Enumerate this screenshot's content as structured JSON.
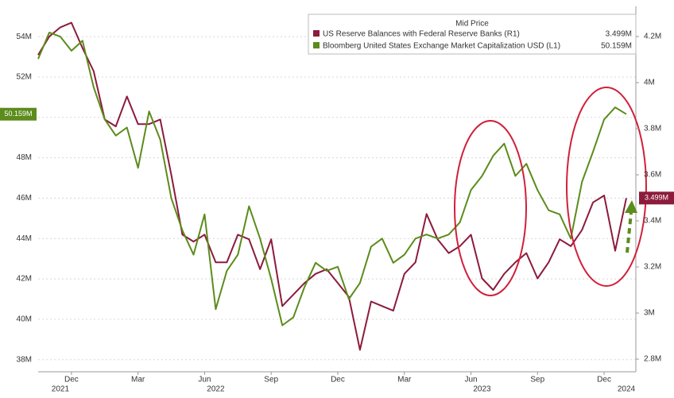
{
  "chart_data": {
    "type": "line",
    "legend_title": "Mid Price",
    "categories": [
      null,
      null,
      null,
      "Dec",
      null,
      null,
      null,
      null,
      null,
      "Mar",
      null,
      null,
      null,
      null,
      null,
      "Jun",
      null,
      null,
      null,
      null,
      null,
      "Sep",
      null,
      null,
      null,
      null,
      null,
      "Dec",
      null,
      null,
      null,
      null,
      null,
      "Mar",
      null,
      null,
      null,
      null,
      null,
      "Jun",
      null,
      null,
      null,
      null,
      null,
      "Sep",
      null,
      null,
      null,
      null,
      null,
      "Dec",
      null,
      null
    ],
    "year_categories": [
      null,
      null,
      "2021",
      null,
      null,
      null,
      null,
      null,
      null,
      null,
      null,
      null,
      null,
      null,
      null,
      null,
      "2022",
      null,
      null,
      null,
      null,
      null,
      null,
      null,
      null,
      null,
      null,
      null,
      null,
      null,
      null,
      null,
      null,
      null,
      null,
      null,
      null,
      null,
      null,
      null,
      "2023",
      null,
      null,
      null,
      null,
      null,
      null,
      null,
      null,
      null,
      null,
      null,
      null,
      "2024"
    ],
    "series": [
      {
        "name": "US Reserve Balances with Federal Reserve Banks  (R1)",
        "color": "#8c1b3c",
        "axis": "y2",
        "last_label": "3.499M",
        "values": [
          4.12,
          4.2,
          4.24,
          4.26,
          4.15,
          4.05,
          3.84,
          3.81,
          3.94,
          3.82,
          3.82,
          3.84,
          3.6,
          3.34,
          3.31,
          3.34,
          3.22,
          3.22,
          3.34,
          3.32,
          3.19,
          3.32,
          3.03,
          3.08,
          3.13,
          3.17,
          3.19,
          3.13,
          3.07,
          2.84,
          3.05,
          3.03,
          3.01,
          3.17,
          3.22,
          3.43,
          3.32,
          3.26,
          3.29,
          3.34,
          3.15,
          3.1,
          3.17,
          3.22,
          3.26,
          3.15,
          3.22,
          3.32,
          3.29,
          3.36,
          3.48,
          3.51,
          3.27,
          3.499
        ]
      },
      {
        "name": "Bloomberg United States Exchange Market Capitalization USD  (L1)",
        "color": "#5b8c1c",
        "last_label": "50.159M",
        "values": [
          52.9,
          54.2,
          54.0,
          53.3,
          53.8,
          51.5,
          49.9,
          49.1,
          49.5,
          47.5,
          50.3,
          48.9,
          46.0,
          44.4,
          43.2,
          45.2,
          40.5,
          42.4,
          43.2,
          45.6,
          44.0,
          42.0,
          39.7,
          40.1,
          41.6,
          42.8,
          42.4,
          42.6,
          41.0,
          41.8,
          43.6,
          44.0,
          42.8,
          43.2,
          44.0,
          44.2,
          44.0,
          44.2,
          44.8,
          46.4,
          47.1,
          48.1,
          48.7,
          47.1,
          47.7,
          46.4,
          45.4,
          45.2,
          44.0,
          46.8,
          48.3,
          49.9,
          50.5,
          50.159
        ]
      }
    ],
    "ylim": [
      37.4,
      55.5
    ],
    "yticks": [
      {
        "value": 38,
        "label": "38M"
      },
      {
        "value": 40,
        "label": "40M"
      },
      {
        "value": 42,
        "label": "42M"
      },
      {
        "value": 44,
        "label": "44M"
      },
      {
        "value": 46,
        "label": "46M"
      },
      {
        "value": 48,
        "label": "48M"
      },
      {
        "value": 50,
        "label": "50M"
      },
      {
        "value": 52,
        "label": "52M"
      },
      {
        "value": 54,
        "label": "54M"
      }
    ],
    "y2lim": [
      2.745,
      4.331
    ],
    "y2ticks": [
      {
        "value": 2.8,
        "label": "2.8M"
      },
      {
        "value": 3,
        "label": "3M"
      },
      {
        "value": 3.2,
        "label": "3.2M"
      },
      {
        "value": 3.4,
        "label": "3.4M"
      },
      {
        "value": 3.6,
        "label": "3.6M"
      },
      {
        "value": 3.8,
        "label": "3.8M"
      },
      {
        "value": 4,
        "label": "4M"
      },
      {
        "value": 4.2,
        "label": "4.2M"
      }
    ],
    "grid": true
  }
}
